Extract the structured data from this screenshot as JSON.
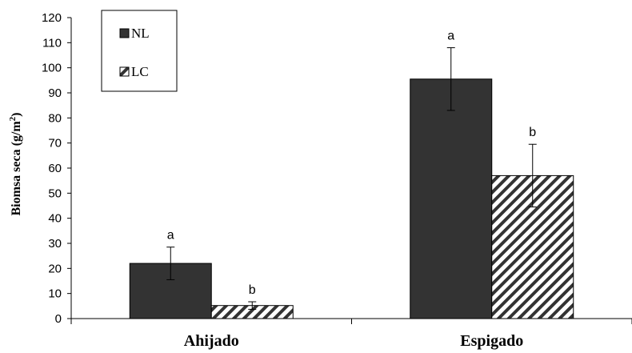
{
  "chart_data": {
    "type": "bar",
    "categories": [
      "Ahijado",
      "Espigado"
    ],
    "series": [
      {
        "name": "NL",
        "values": [
          22,
          95.5
        ],
        "errors": [
          6.5,
          12.5
        ],
        "significance": [
          "a",
          "a"
        ],
        "fill": "#333333",
        "pattern": "solid"
      },
      {
        "name": "LC",
        "values": [
          5.2,
          57
        ],
        "errors": [
          1.5,
          12.5
        ],
        "significance": [
          "b",
          "b"
        ],
        "fill": "#333333",
        "pattern": "diagonal-hatch"
      }
    ],
    "title": "",
    "xlabel": "",
    "ylabel": "Biomsa seca (g/m",
    "ylabel_superscript": "2",
    "ylabel_suffix": ")",
    "ylim": [
      0,
      120
    ],
    "yticks": [
      0,
      10,
      20,
      30,
      40,
      50,
      60,
      70,
      80,
      90,
      100,
      110,
      120
    ],
    "grid": false,
    "legend_position": "top-left"
  }
}
